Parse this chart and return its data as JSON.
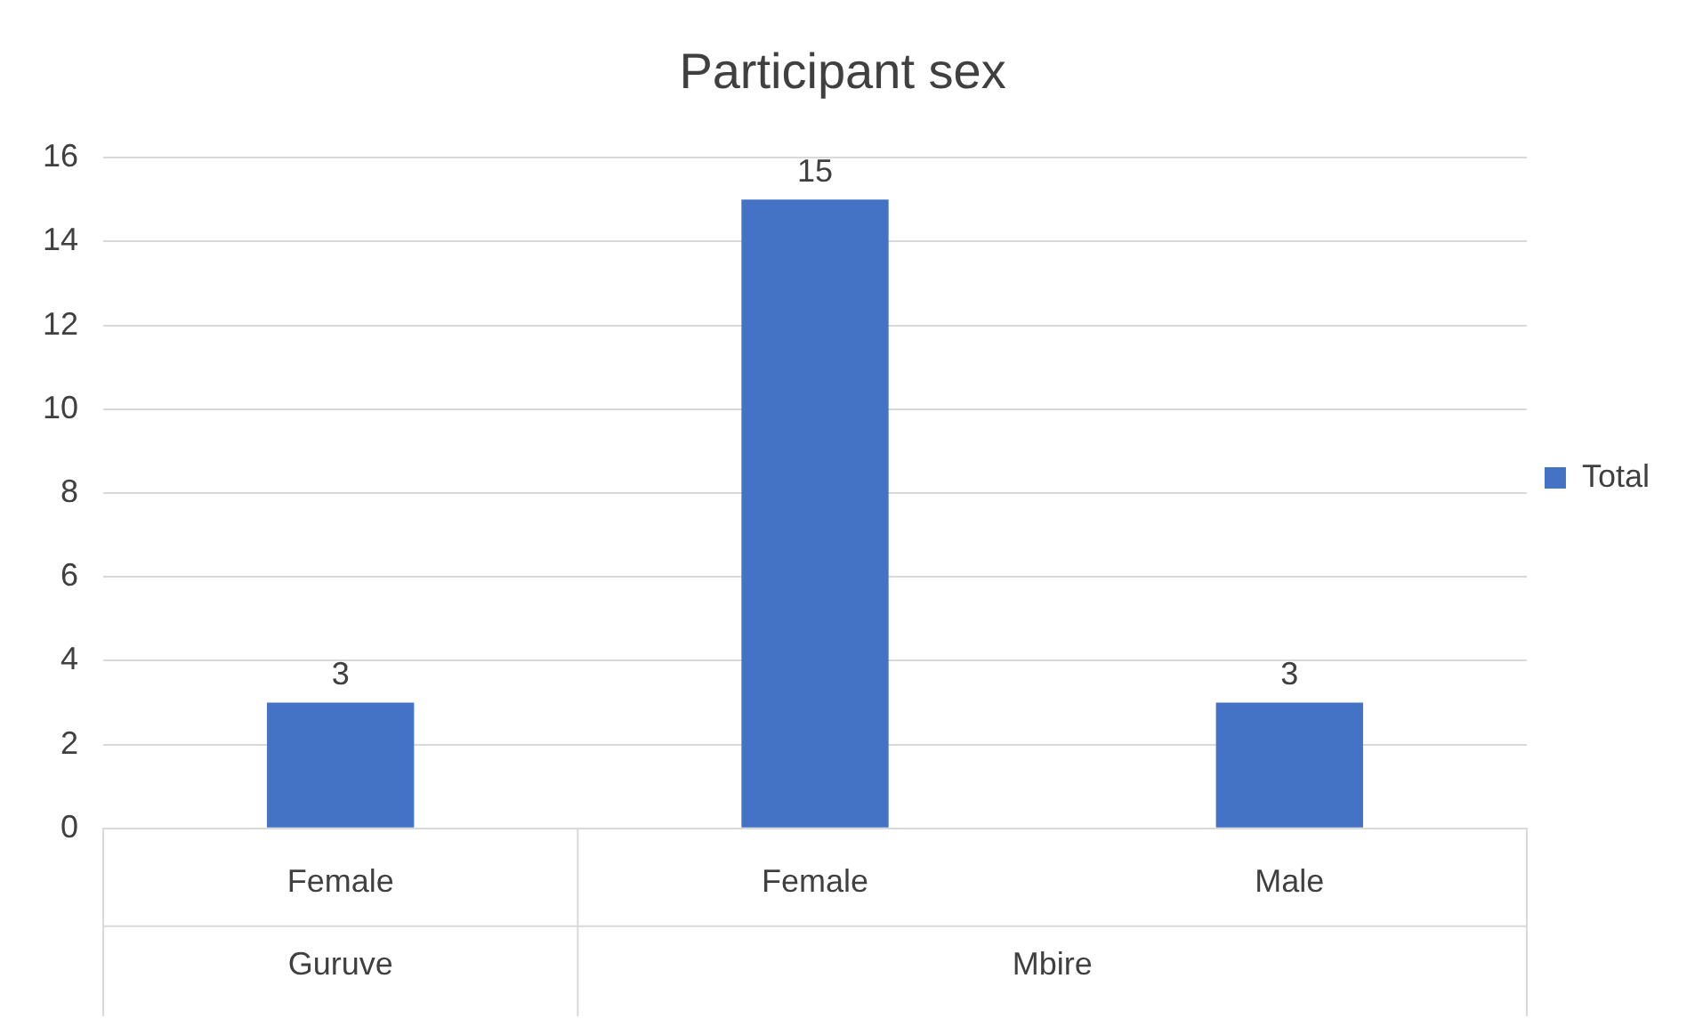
{
  "chart_data": {
    "type": "bar",
    "title": "Participant sex",
    "categories": [
      "Female",
      "Female",
      "Male"
    ],
    "series": [
      {
        "name": "Total",
        "color": "#4472c4",
        "values": [
          3,
          15,
          3
        ]
      }
    ],
    "annotations": [
      "Guruve",
      "Mbire"
    ],
    "ylim": [
      0,
      16
    ],
    "yticks": [
      0,
      2,
      4,
      6,
      8,
      10,
      12,
      14,
      16
    ],
    "grid": "y",
    "legend": "right",
    "data_labels": true
  }
}
